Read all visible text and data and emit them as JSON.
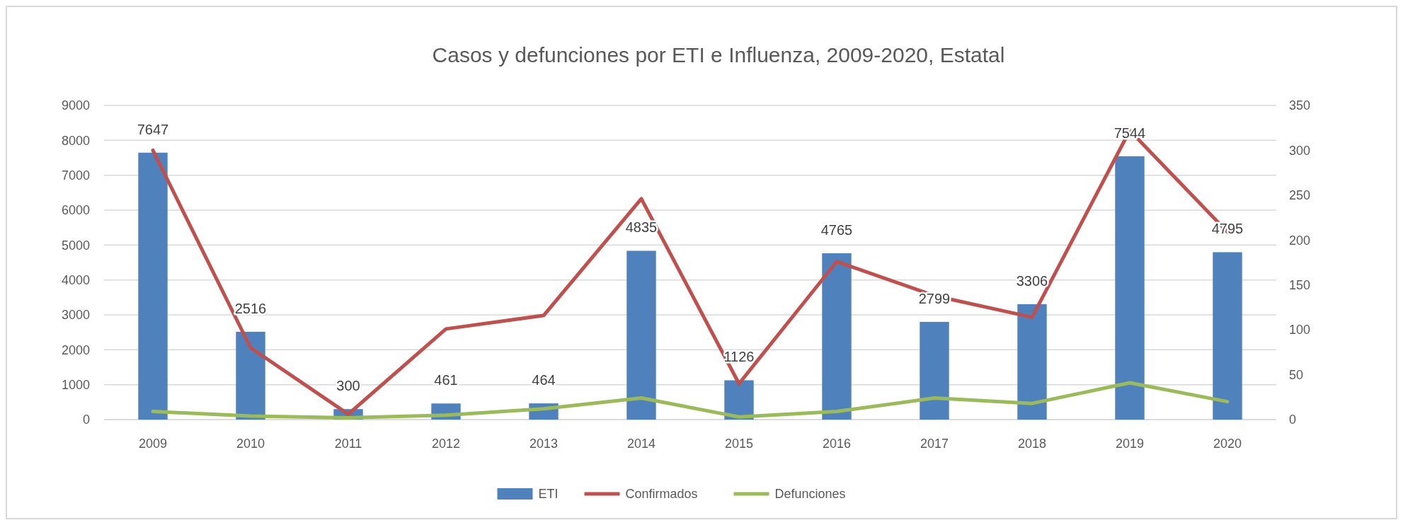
{
  "chart_data": {
    "type": "bar",
    "title": "Casos y defunciones por ETI e Influenza, 2009-2020, Estatal",
    "categories": [
      "2009",
      "2010",
      "2011",
      "2012",
      "2013",
      "2014",
      "2015",
      "2016",
      "2017",
      "2018",
      "2019",
      "2020"
    ],
    "series": [
      {
        "name": "ETI",
        "color": "#4f81bd",
        "values": [
          7647,
          2516,
          300,
          461,
          464,
          4835,
          1126,
          4765,
          2799,
          3306,
          7544,
          4795
        ],
        "value_labels": [
          "7647",
          "2516",
          "300",
          "461",
          "464",
          "4835",
          "1126",
          "4765",
          "2799",
          "3306",
          "7544",
          "4795"
        ]
      },
      {
        "name": "Confirmados",
        "type": "line",
        "axis": "y2",
        "color": "#c0504d",
        "values": [
          300,
          80,
          6,
          101,
          116,
          246,
          40,
          176,
          138,
          114,
          322,
          209
        ]
      },
      {
        "name": "Defunciones",
        "type": "line",
        "axis": "y2",
        "color": "#9bbb59",
        "values": [
          9,
          4,
          2,
          5,
          12,
          24,
          3,
          9,
          24,
          18,
          41,
          20
        ]
      }
    ],
    "ylim": [
      0,
      9000
    ],
    "yticks": [
      0,
      1000,
      2000,
      3000,
      4000,
      5000,
      6000,
      7000,
      8000,
      9000
    ],
    "y2lim": [
      0,
      350
    ],
    "y2ticks": [
      0,
      50,
      100,
      150,
      200,
      250,
      300,
      350
    ],
    "grid": "y",
    "legend": "bottom",
    "marker": "none",
    "line_style": "solid"
  }
}
